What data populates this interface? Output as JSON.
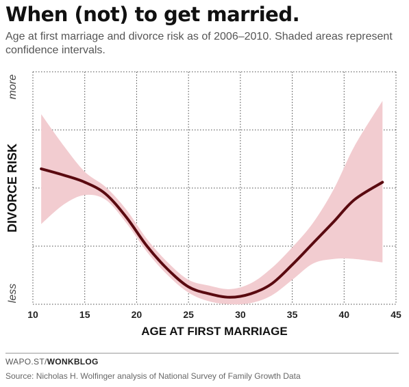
{
  "header": {
    "title": "When (not) to get married.",
    "subtitle": "Age at first marriage and divorce risk as of 2006–2010. Shaded areas represent confidence intervals."
  },
  "footer": {
    "brand_prefix": "WAPO.ST/",
    "brand_name": "WONKBLOG",
    "source": "Source: Nicholas H. Wolfinger analysis of National Survey of Family Growth Data"
  },
  "colors": {
    "line": "#5a0a10",
    "band": "#f2ccd0",
    "grid": "#444444"
  },
  "chart_data": {
    "type": "line",
    "xlabel": "AGE AT FIRST MARRIAGE",
    "ylabel": "DIVORCE RISK",
    "xlim": [
      10,
      45
    ],
    "ylim": [
      0,
      4
    ],
    "x_ticks": [
      10,
      15,
      20,
      25,
      30,
      35,
      40,
      45
    ],
    "y_ticks": [
      0,
      1,
      2,
      3,
      4
    ],
    "y_tick_labels": {
      "top": "more",
      "bottom": "less"
    },
    "grid": true,
    "series": [
      {
        "x": [
          10.8,
          13,
          15,
          17,
          19,
          21,
          23,
          25,
          27,
          29,
          31,
          33,
          35,
          37,
          39,
          41,
          43.7
        ],
        "y": [
          2.33,
          2.22,
          2.1,
          1.9,
          1.5,
          1.0,
          0.6,
          0.3,
          0.18,
          0.12,
          0.18,
          0.35,
          0.68,
          1.05,
          1.42,
          1.8,
          2.1
        ],
        "lower": [
          1.38,
          1.72,
          1.88,
          1.8,
          1.4,
          0.9,
          0.5,
          0.2,
          0.05,
          0.0,
          0.02,
          0.15,
          0.42,
          0.7,
          0.78,
          0.78,
          0.72
        ],
        "upper": [
          3.27,
          2.72,
          2.28,
          2.02,
          1.63,
          1.12,
          0.72,
          0.42,
          0.32,
          0.26,
          0.36,
          0.62,
          0.98,
          1.4,
          1.98,
          2.72,
          3.5
        ]
      }
    ]
  }
}
